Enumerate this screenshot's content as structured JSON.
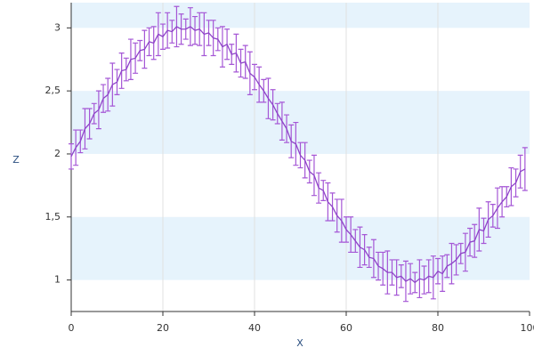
{
  "chart_data": {
    "type": "errorline",
    "x_label": "X",
    "y_label": "Z",
    "x": [
      0,
      1,
      2,
      3,
      4,
      5,
      6,
      7,
      8,
      9,
      10,
      11,
      12,
      13,
      14,
      15,
      16,
      17,
      18,
      19,
      20,
      21,
      22,
      23,
      24,
      25,
      26,
      27,
      28,
      29,
      30,
      31,
      32,
      33,
      34,
      35,
      36,
      37,
      38,
      39,
      40,
      41,
      42,
      43,
      44,
      45,
      46,
      47,
      48,
      49,
      50,
      51,
      52,
      53,
      54,
      55,
      56,
      57,
      58,
      59,
      60,
      61,
      62,
      63,
      64,
      65,
      66,
      67,
      68,
      69,
      70,
      71,
      72,
      73,
      74,
      75,
      76,
      77,
      78,
      79,
      80,
      81,
      82,
      83,
      84,
      85,
      86,
      87,
      88,
      89,
      90,
      91,
      92,
      93,
      94,
      95,
      96,
      97,
      98,
      99
    ],
    "series": [
      {
        "color": "#8e44c8",
        "error_color": "#a557d6",
        "values": [
          1.98,
          2.05,
          2.1,
          2.2,
          2.24,
          2.32,
          2.35,
          2.44,
          2.47,
          2.55,
          2.57,
          2.66,
          2.67,
          2.75,
          2.76,
          2.82,
          2.83,
          2.89,
          2.88,
          2.95,
          2.93,
          2.98,
          2.97,
          3.01,
          2.99,
          2.99,
          3.01,
          2.98,
          2.99,
          2.95,
          2.96,
          2.92,
          2.91,
          2.85,
          2.87,
          2.79,
          2.8,
          2.72,
          2.73,
          2.64,
          2.61,
          2.55,
          2.5,
          2.44,
          2.39,
          2.32,
          2.26,
          2.2,
          2.1,
          2.08,
          1.99,
          1.95,
          1.86,
          1.83,
          1.73,
          1.71,
          1.62,
          1.58,
          1.51,
          1.47,
          1.4,
          1.36,
          1.31,
          1.26,
          1.24,
          1.18,
          1.17,
          1.11,
          1.09,
          1.06,
          1.06,
          1.02,
          1.03,
          0.99,
          1.01,
          0.98,
          1.01,
          1.0,
          1.03,
          1.02,
          1.07,
          1.05,
          1.11,
          1.13,
          1.16,
          1.21,
          1.22,
          1.3,
          1.31,
          1.4,
          1.39,
          1.48,
          1.51,
          1.57,
          1.62,
          1.66,
          1.74,
          1.77,
          1.86,
          1.88
        ],
        "errors": [
          0.1,
          0.14,
          0.09,
          0.16,
          0.12,
          0.08,
          0.15,
          0.11,
          0.13,
          0.17,
          0.1,
          0.14,
          0.09,
          0.16,
          0.12,
          0.08,
          0.15,
          0.11,
          0.13,
          0.17,
          0.1,
          0.14,
          0.09,
          0.16,
          0.12,
          0.08,
          0.15,
          0.11,
          0.13,
          0.17,
          0.1,
          0.14,
          0.09,
          0.16,
          0.12,
          0.08,
          0.15,
          0.11,
          0.13,
          0.17,
          0.1,
          0.14,
          0.09,
          0.16,
          0.12,
          0.08,
          0.15,
          0.11,
          0.13,
          0.17,
          0.1,
          0.14,
          0.09,
          0.16,
          0.12,
          0.08,
          0.15,
          0.11,
          0.13,
          0.17,
          0.1,
          0.14,
          0.09,
          0.16,
          0.12,
          0.08,
          0.15,
          0.11,
          0.13,
          0.17,
          0.1,
          0.14,
          0.09,
          0.16,
          0.12,
          0.08,
          0.15,
          0.11,
          0.13,
          0.17,
          0.1,
          0.14,
          0.09,
          0.16,
          0.12,
          0.08,
          0.15,
          0.11,
          0.13,
          0.17,
          0.1,
          0.14,
          0.09,
          0.16,
          0.12,
          0.08,
          0.15,
          0.11,
          0.13,
          0.17
        ]
      }
    ],
    "xlim": [
      0,
      100
    ],
    "xticks": [
      0,
      20,
      40,
      60,
      80,
      100
    ],
    "ylim": [
      0.75,
      3.2
    ],
    "yticks": [
      1,
      {
        "value": 1.5,
        "label": "1,5"
      },
      2,
      {
        "value": 2.5,
        "label": "2,5"
      },
      3
    ],
    "grid": "x",
    "band_color": "#e6f3fc"
  }
}
